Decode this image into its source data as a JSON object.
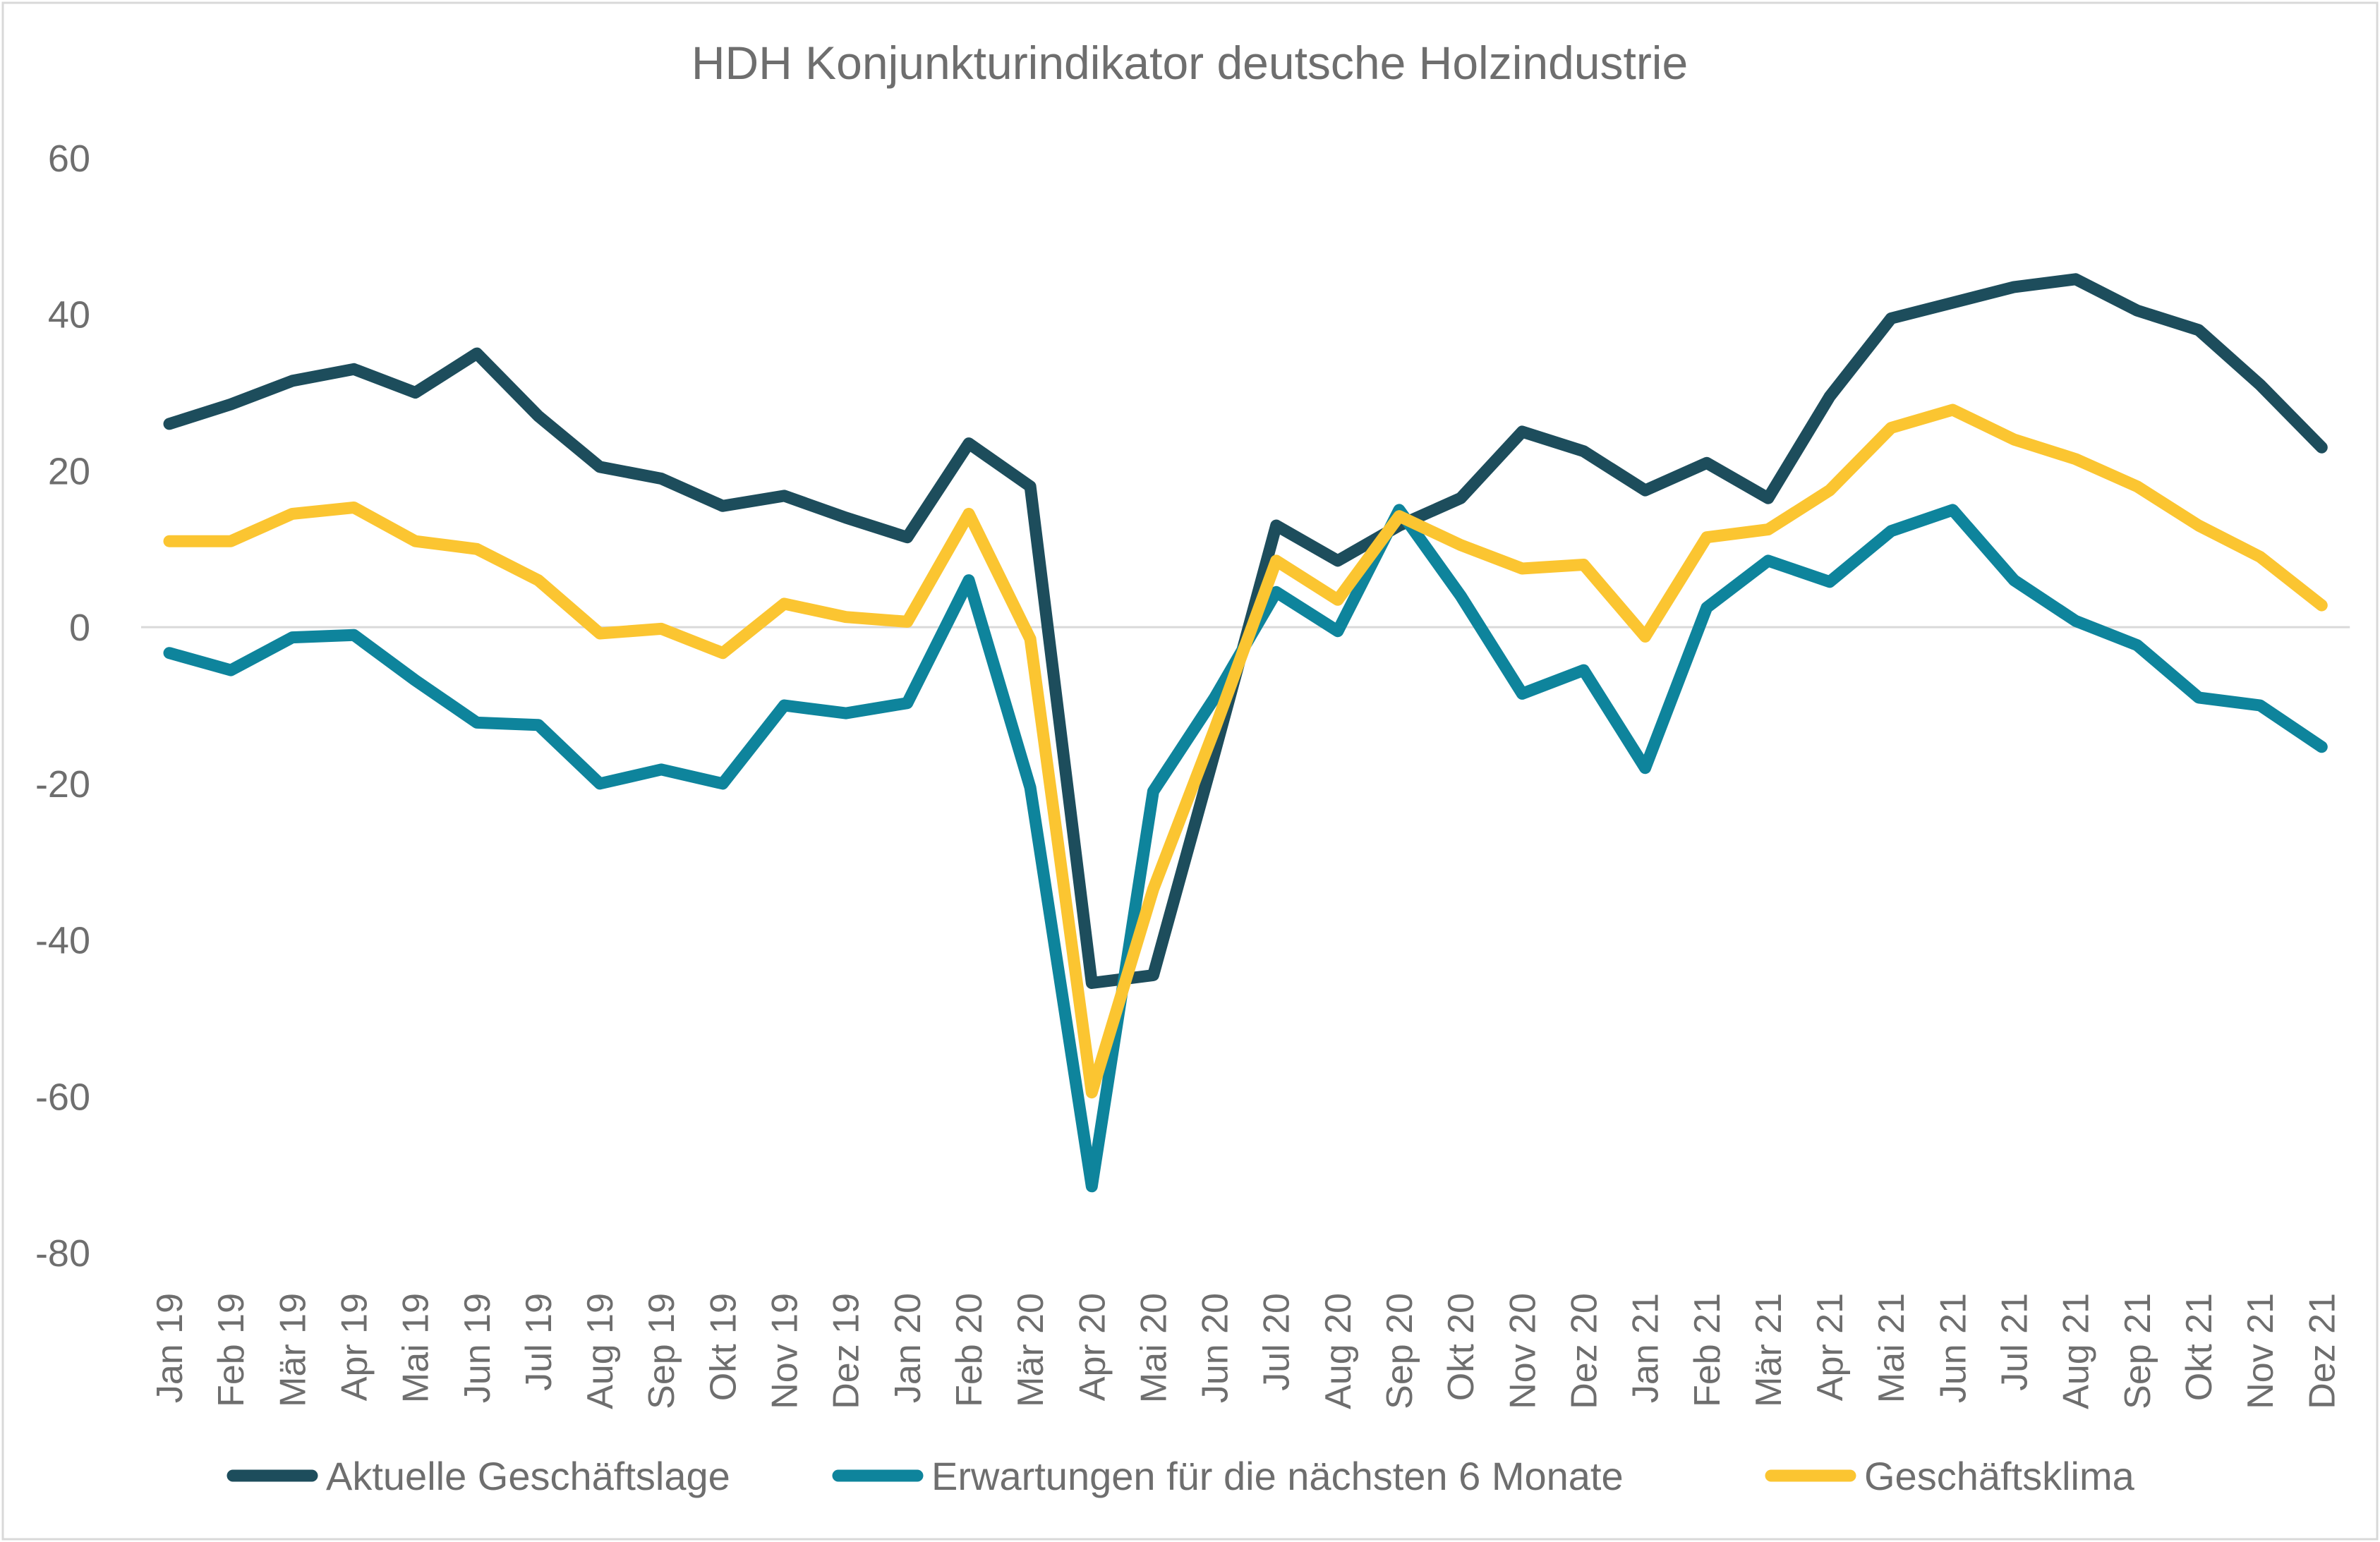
{
  "chart_data": {
    "type": "line",
    "title": "HDH Konjunkturindikator deutsche Holzindustrie",
    "xlabel": "",
    "ylabel": "",
    "ylim": [
      -80,
      60
    ],
    "yticks": [
      "60",
      "40",
      "20",
      "0",
      "-20",
      "-40",
      "-60",
      "-80"
    ],
    "grid": false,
    "zero_line": true,
    "legend_position": "bottom",
    "categories": [
      "Jan 19",
      "Feb 19",
      "Mär 19",
      "Apr 19",
      "Mai 19",
      "Jun 19",
      "Jul 19",
      "Aug 19",
      "Sep 19",
      "Okt 19",
      "Nov 19",
      "Dez 19",
      "Jan 20",
      "Feb 20",
      "Mär 20",
      "Apr 20",
      "Mai 20",
      "Jun 20",
      "Jul 20",
      "Aug 20",
      "Sep 20",
      "Okt 20",
      "Nov 20",
      "Dez 20",
      "Jan 21",
      "Feb 21",
      "Mär 21",
      "Apr 21",
      "Mai 21",
      "Jun 21",
      "Jul 21",
      "Aug 21",
      "Sep 21",
      "Okt 21",
      "Nov 21",
      "Dez 21"
    ],
    "series": [
      {
        "name": "Aktuelle Geschäftslage",
        "color": "#1d4d5c",
        "values": [
          26,
          28.5,
          31.5,
          33,
          30,
          35,
          27,
          20.5,
          19,
          15.5,
          16.8,
          14,
          11.5,
          23.5,
          18,
          -45.5,
          -44.5,
          -16,
          13,
          8.5,
          13,
          16.5,
          25,
          22.5,
          17.5,
          21,
          16.5,
          29.5,
          39.5,
          41.5,
          43.5,
          44.5,
          40.5,
          38,
          31,
          23
        ]
      },
      {
        "name": "Erwartungen für die nächsten 6 Monate",
        "color": "#0e849c",
        "values": [
          -3.3,
          -5.5,
          -1.3,
          -1,
          -6.8,
          -12.2,
          -12.5,
          -20,
          -18.2,
          -20,
          -10,
          -11,
          -9.7,
          6,
          -20.5,
          -71.5,
          -21,
          -9,
          4.5,
          -0.5,
          15,
          4,
          -8.5,
          -5.5,
          -18,
          2.5,
          8.5,
          5.8,
          12.3,
          15,
          6,
          0.8,
          -2.3,
          -9,
          -10,
          -15.3
        ]
      },
      {
        "name": "Geschäftsklima",
        "color": "#fbc531",
        "values": [
          11,
          11,
          14.5,
          15.3,
          11,
          10,
          6,
          -0.8,
          -0.2,
          -3.3,
          3,
          1.3,
          0.7,
          14.5,
          -1.5,
          -59.5,
          -33.5,
          -13,
          8.5,
          3.5,
          14.2,
          10.5,
          7.5,
          8,
          -1.2,
          11.5,
          12.5,
          17.5,
          25.5,
          27.8,
          24,
          21.5,
          18,
          13,
          9,
          2.8
        ]
      }
    ]
  }
}
